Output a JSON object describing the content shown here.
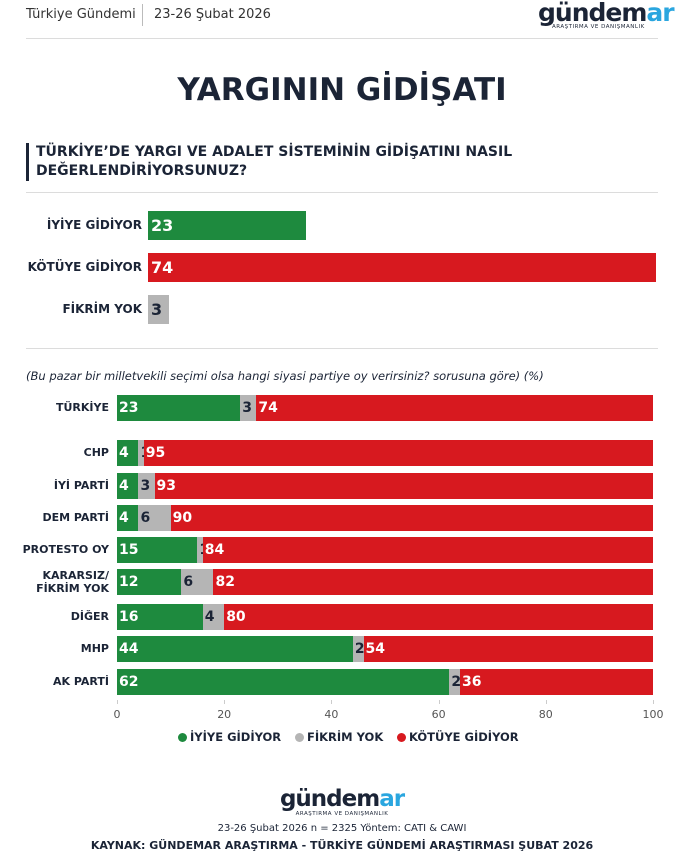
{
  "header": {
    "left": "Türkiye Gündemi",
    "date": "23-26 Şubat 2026",
    "logo": "gündem",
    "logo_accent": "ar",
    "logo_sub": "ARAŞTIRMA VE DANIŞMANLIK"
  },
  "title": "YARGININ GİDİŞATI",
  "question": "TÜRKİYE’DE YARGI VE ADALET SİSTEMİNİN GİDİŞATINI NASIL DEĞERLENDİRİYORSUNUZ?",
  "chart_data": [
    {
      "type": "bar",
      "orientation": "horizontal",
      "categories": [
        "İYİYE GİDİYOR",
        "KÖTÜYE GİDİYOR",
        "FİKRİM YOK"
      ],
      "values": [
        23,
        74,
        3
      ],
      "colors": [
        "#1e8a3e",
        "#d7191f",
        "#b5b5b5"
      ]
    },
    {
      "type": "stacked_bar",
      "orientation": "horizontal",
      "subtitle": "(Bu pazar bir milletvekili seçimi olsa hangi siyasi partiye oy verirsiniz? sorusuna göre) (%)",
      "categories": [
        "TÜRKİYE",
        "CHP",
        "İYİ PARTİ",
        "DEM PARTİ",
        "PROTESTO OY",
        "KARARSIZ/\nFİKRİM YOK",
        "DİĞER",
        "MHP",
        "AK PARTİ"
      ],
      "series": [
        {
          "name": "İYİYE GİDİYOR",
          "color": "#1e8a3e",
          "values": [
            23,
            4,
            4,
            4,
            15,
            12,
            16,
            44,
            62
          ]
        },
        {
          "name": "FİKRİM YOK",
          "color": "#b5b5b5",
          "values": [
            3,
            1,
            3,
            6,
            1,
            6,
            4,
            2,
            2
          ]
        },
        {
          "name": "KÖTÜYE GİDİYOR",
          "color": "#d7191f",
          "values": [
            74,
            95,
            93,
            90,
            84,
            82,
            80,
            54,
            36
          ]
        }
      ],
      "xlim": [
        0,
        100
      ],
      "xticks": [
        0,
        20,
        40,
        60,
        80,
        100
      ],
      "legend": "bottom"
    }
  ],
  "footer": {
    "logo": "gündem",
    "logo_accent": "ar",
    "logo_sub": "ARAŞTIRMA VE DANIŞMANLIK",
    "method": "23-26 Şubat 2026 n = 2325 Yöntem: CATI & CAWI",
    "source": "KAYNAK: GÜNDEMAR ARAŞTIRMA - TÜRKİYE GÜNDEMİ ARAŞTIRMASI ŞUBAT 2026"
  }
}
